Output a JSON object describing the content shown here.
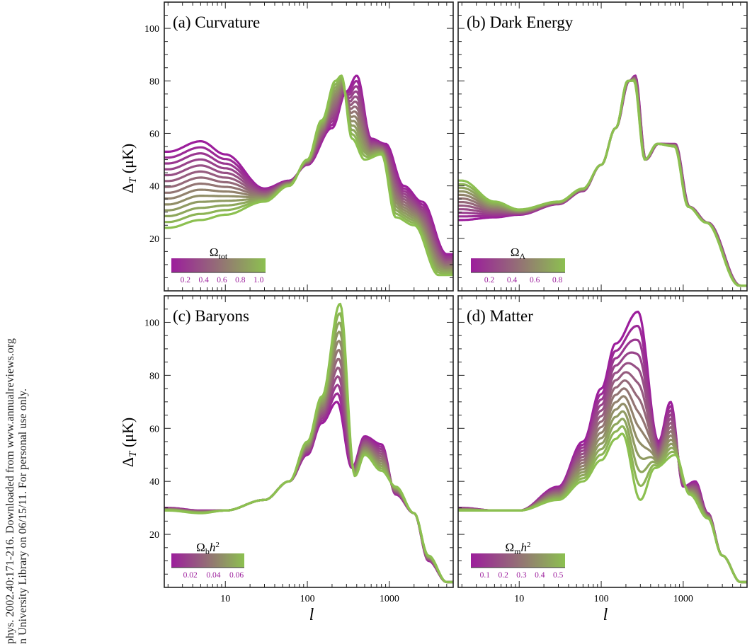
{
  "side_text": {
    "line1": "phys. 2002.40:171-216. Downloaded from www.annualreviews.org",
    "line2": "n University Library on 06/15/11. For personal use only."
  },
  "axes": {
    "x_label": "l",
    "y_label_main": "Δ",
    "y_label_sub": "T",
    "y_label_unit": " (μK)",
    "x_ticks": [
      10,
      100,
      1000
    ],
    "x_tick_labels": [
      "10",
      "100",
      "1000"
    ],
    "x_range": [
      1.8,
      6000
    ],
    "y_range": [
      0,
      110
    ],
    "y_ticks_top": [
      20,
      40,
      60,
      80,
      100
    ],
    "y_ticks_bottom": [
      20,
      40,
      60,
      80,
      100
    ]
  },
  "colors": {
    "start": "#9c1e9c",
    "end": "#8cc050",
    "frame": "#222222"
  },
  "chart_data": [
    {
      "id": "a",
      "type": "line",
      "title": "(a) Curvature",
      "param_main": "Ω",
      "param_sub": "tot",
      "param_sup": "",
      "colorbar_ticks": [
        "0.2",
        "0.4",
        "0.6",
        "0.8",
        "1.0"
      ],
      "n_curves": 14,
      "x_range": [
        1.8,
        6000
      ],
      "y_range": [
        0,
        110
      ],
      "series_first": {
        "name": "Ωtot = 0.2",
        "x": [
          2,
          5,
          10,
          30,
          60,
          100,
          200,
          300,
          400,
          600,
          900,
          1500,
          2500,
          5000
        ],
        "y": [
          53,
          57,
          52,
          39,
          42,
          48,
          62,
          76,
          82,
          58,
          56,
          40,
          34,
          14
        ]
      },
      "series_last": {
        "name": "Ωtot = 1.0",
        "x": [
          2,
          5,
          10,
          30,
          60,
          100,
          150,
          220,
          260,
          350,
          500,
          800,
          1200,
          2000,
          4000
        ],
        "y": [
          24,
          27,
          29,
          34,
          40,
          50,
          65,
          80,
          82,
          58,
          50,
          52,
          28,
          25,
          6
        ]
      }
    },
    {
      "id": "b",
      "type": "line",
      "title": "(b) Dark Energy",
      "param_main": "Ω",
      "param_sub": "Λ",
      "param_sup": "",
      "colorbar_ticks": [
        "0.2",
        "0.4",
        "0.6",
        "0.8"
      ],
      "n_curves": 12,
      "x_range": [
        1.8,
        6000
      ],
      "y_range": [
        0,
        110
      ],
      "series_first": {
        "name": "ΩΛ = 0.1",
        "x": [
          2,
          5,
          10,
          30,
          60,
          100,
          150,
          220,
          260,
          350,
          500,
          800,
          1200,
          2000,
          5000
        ],
        "y": [
          27,
          28,
          29,
          33,
          38,
          48,
          62,
          80,
          82,
          50,
          56,
          56,
          32,
          26,
          2
        ]
      },
      "series_last": {
        "name": "ΩΛ = 0.9",
        "x": [
          2,
          5,
          10,
          30,
          60,
          100,
          150,
          210,
          250,
          340,
          480,
          780,
          1150,
          1900,
          4800
        ],
        "y": [
          42,
          34,
          31,
          34,
          39,
          48,
          62,
          80,
          80,
          50,
          56,
          55,
          32,
          26,
          2
        ]
      }
    },
    {
      "id": "c",
      "type": "line",
      "title": "(c) Baryons",
      "param_main": "Ω",
      "param_sub": "b",
      "param_sup": "h2",
      "colorbar_ticks": [
        "0.02",
        "0.04",
        "0.06"
      ],
      "n_curves": 12,
      "x_range": [
        1.8,
        6000
      ],
      "y_range": [
        0,
        110
      ],
      "series_first": {
        "name": "Ωbh2 = 0.005",
        "x": [
          2,
          5,
          10,
          30,
          60,
          100,
          150,
          230,
          350,
          500,
          800,
          1200,
          2000,
          3000,
          5000
        ],
        "y": [
          30,
          29,
          29,
          33,
          40,
          50,
          62,
          70,
          45,
          57,
          54,
          35,
          28,
          10,
          2
        ]
      },
      "series_last": {
        "name": "Ωbh2 = 0.06",
        "x": [
          2,
          5,
          10,
          30,
          60,
          100,
          150,
          250,
          380,
          500,
          800,
          1200,
          2000,
          3000,
          5000
        ],
        "y": [
          29,
          28,
          29,
          33,
          40,
          55,
          72,
          107,
          42,
          50,
          44,
          38,
          28,
          12,
          2
        ]
      }
    },
    {
      "id": "d",
      "type": "line",
      "title": "(d) Matter",
      "param_main": "Ω",
      "param_sub": "m",
      "param_sup": "h2",
      "colorbar_ticks": [
        "0.1",
        "0.2",
        "0.3",
        "0.4",
        "0.5"
      ],
      "n_curves": 14,
      "x_range": [
        1.8,
        6000
      ],
      "y_range": [
        0,
        110
      ],
      "series_first": {
        "name": "Ωmh2 = 0.05",
        "x": [
          2,
          5,
          10,
          30,
          60,
          100,
          150,
          280,
          500,
          700,
          1000,
          1400,
          2000,
          3000,
          5000
        ],
        "y": [
          30,
          29,
          29,
          38,
          55,
          75,
          92,
          104,
          55,
          70,
          38,
          40,
          28,
          12,
          2
        ]
      },
      "series_last": {
        "name": "Ωmh2 = 0.5",
        "x": [
          2,
          5,
          10,
          30,
          60,
          100,
          150,
          180,
          300,
          450,
          800,
          1200,
          2000,
          3000,
          5000
        ],
        "y": [
          29,
          29,
          29,
          33,
          40,
          48,
          56,
          58,
          33,
          45,
          50,
          35,
          26,
          12,
          2
        ]
      }
    }
  ]
}
